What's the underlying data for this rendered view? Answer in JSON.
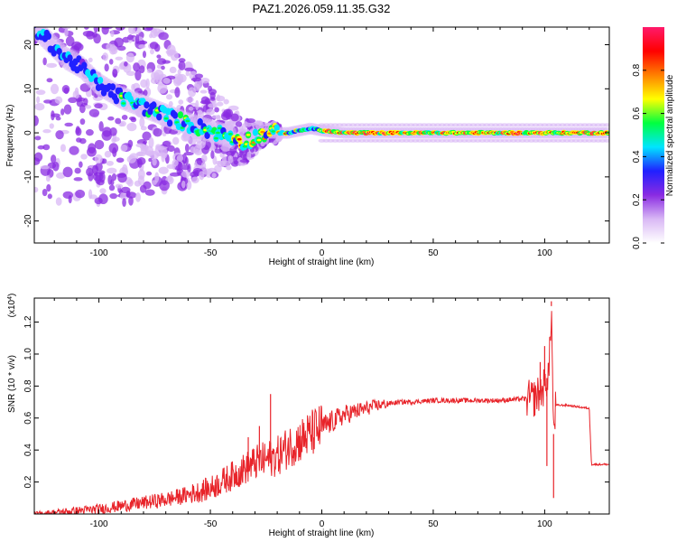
{
  "title": "PAZ1.2026.059.11.35.G32",
  "chart_data": [
    {
      "type": "heatmap",
      "title": "PAZ1.2026.059.11.35.G32",
      "xlabel": "Height of straight line (km)",
      "ylabel": "Frequency (Hz)",
      "xlim": [
        -129,
        129
      ],
      "ylim": [
        -25,
        24
      ],
      "xticks": [
        -100,
        -50,
        0,
        50,
        100
      ],
      "yticks": [
        -20,
        -10,
        0,
        10,
        20
      ],
      "colorbar": {
        "label": "Normalized spectral amplitude",
        "range": [
          0,
          1
        ],
        "ticks": [
          0.0,
          0.2,
          0.4,
          0.6,
          0.8
        ],
        "tick_labels": [
          "0.0",
          "0.2",
          "0.4",
          "0.6",
          "0.8"
        ],
        "colors": [
          "#ffffff",
          "#d9b8f5",
          "#8a2be2",
          "#2020ff",
          "#00e5ff",
          "#00ff40",
          "#ffff00",
          "#ff8000",
          "#ff0000",
          "#ff1a6b"
        ]
      },
      "ridge": [
        {
          "x": -129,
          "f": 24
        },
        {
          "x": -115,
          "f": 17
        },
        {
          "x": -108,
          "f": 15
        },
        {
          "x": -100,
          "f": 11
        },
        {
          "x": -90,
          "f": 8
        },
        {
          "x": -80,
          "f": 6
        },
        {
          "x": -70,
          "f": 4
        },
        {
          "x": -60,
          "f": 2
        },
        {
          "x": -50,
          "f": 0.5
        },
        {
          "x": -40,
          "f": -1
        },
        {
          "x": -35,
          "f": -2
        },
        {
          "x": -30,
          "f": -1
        },
        {
          "x": -25,
          "f": 0
        },
        {
          "x": -15,
          "f": 0
        },
        {
          "x": -5,
          "f": 1
        },
        {
          "x": 0,
          "f": 0.5
        },
        {
          "x": 10,
          "f": 0
        },
        {
          "x": 129,
          "f": 0
        }
      ]
    },
    {
      "type": "line",
      "xlabel": "Height of straight line (km)",
      "ylabel": "SNR (10 * v/v)",
      "multiplier": "(x10",
      "multiplier_exp": "4",
      "multiplier_close": ")",
      "xlim": [
        -129,
        129
      ],
      "ylim": [
        0,
        1.35
      ],
      "xticks": [
        -100,
        -50,
        0,
        50,
        100
      ],
      "yticks": [
        0.2,
        0.4,
        0.6,
        0.8,
        1.0,
        1.2
      ],
      "ytick_labels": [
        "0.2",
        "0.4",
        "0.6",
        "0.8",
        "1.0",
        "1.2"
      ],
      "color": "#e8242a",
      "series": [
        {
          "name": "SNR",
          "x": [
            -129,
            -110,
            -100,
            -90,
            -80,
            -70,
            -60,
            -50,
            -45,
            -40,
            -35,
            -30,
            -25,
            -20,
            -15,
            -10,
            -5,
            0,
            5,
            10,
            15,
            20,
            25,
            30,
            35,
            40,
            50,
            60,
            70,
            80,
            90,
            95,
            98,
            100,
            102,
            103,
            104,
            105,
            110,
            115,
            120,
            121,
            125,
            129
          ],
          "values": [
            0.0,
            0.02,
            0.03,
            0.05,
            0.07,
            0.09,
            0.12,
            0.16,
            0.2,
            0.24,
            0.28,
            0.32,
            0.34,
            0.36,
            0.42,
            0.46,
            0.5,
            0.54,
            0.58,
            0.62,
            0.64,
            0.66,
            0.68,
            0.69,
            0.7,
            0.7,
            0.71,
            0.71,
            0.71,
            0.71,
            0.72,
            0.72,
            0.76,
            0.8,
            0.9,
            1.3,
            0.5,
            0.68,
            0.68,
            0.67,
            0.66,
            0.31,
            0.31,
            0.31
          ]
        }
      ],
      "spikes": [
        {
          "x": -23,
          "value": 0.75
        },
        {
          "x": -28,
          "value": 0.55
        },
        {
          "x": -33,
          "value": 0.48
        },
        {
          "x": 98,
          "value": 0.95
        },
        {
          "x": 100,
          "value": 1.05
        },
        {
          "x": 103,
          "value": 1.33
        },
        {
          "x": 104,
          "value": 0.1
        },
        {
          "x": 101,
          "value": 0.3
        }
      ]
    }
  ]
}
